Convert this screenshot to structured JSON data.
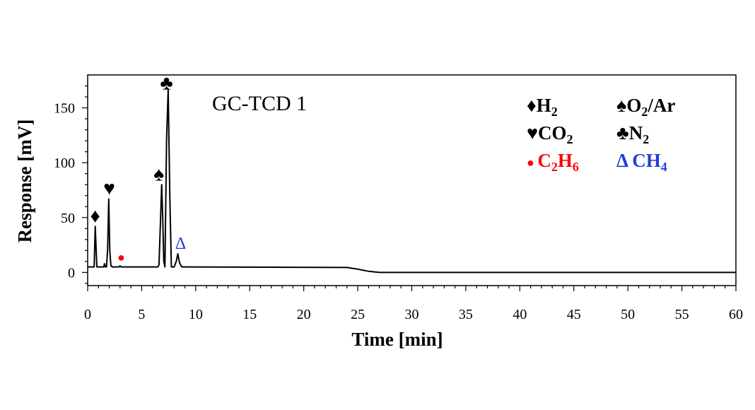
{
  "chart_data": {
    "type": "line",
    "title": "GC-TCD 1",
    "xlabel": "Time [min]",
    "ylabel": "Response [mV]",
    "xlim": [
      0,
      60
    ],
    "ylim": [
      -12,
      180
    ],
    "x_ticks": [
      0,
      5,
      10,
      15,
      20,
      25,
      30,
      35,
      40,
      45,
      50,
      55,
      60
    ],
    "y_ticks": [
      0,
      50,
      100,
      150
    ],
    "grid": false,
    "legend_position": "top-right",
    "series": [
      {
        "color": "#000000",
        "x": [
          0,
          0.4,
          0.6,
          0.7,
          0.85,
          1.0,
          1.5,
          1.55,
          1.65,
          1.75,
          1.85,
          1.95,
          2.05,
          2.15,
          2.3,
          2.4,
          2.9,
          3.0,
          3.1,
          3.3,
          6.5,
          6.6,
          6.75,
          6.85,
          6.95,
          7.05,
          7.15,
          7.3,
          7.45,
          7.6,
          7.75,
          8.0,
          8.2,
          8.35,
          8.5,
          8.7,
          9.0,
          24.0,
          25.0,
          26.0,
          27.0,
          28.0,
          60.0
        ],
        "y": [
          5,
          5,
          5,
          42,
          5,
          5,
          5,
          8,
          5,
          5,
          22,
          67,
          20,
          6,
          5,
          5,
          5,
          6,
          5,
          5,
          5,
          7,
          50,
          80,
          50,
          10,
          5,
          120,
          167,
          70,
          5,
          5,
          10,
          17,
          9,
          5,
          5,
          4.5,
          3,
          1,
          0,
          0,
          0
        ]
      }
    ],
    "annotations": [
      {
        "symbol": "♦",
        "x": 0.7,
        "y": 52,
        "color": "#000000"
      },
      {
        "symbol": "♥",
        "x": 2.0,
        "y": 77,
        "color": "#000000"
      },
      {
        "symbol": "●",
        "x": 3.1,
        "y": 14,
        "color": "#ff0000"
      },
      {
        "symbol": "♠",
        "x": 6.6,
        "y": 90,
        "color": "#000000"
      },
      {
        "symbol": "♣",
        "x": 7.3,
        "y": 173,
        "color": "#000000"
      },
      {
        "symbol": "Δ",
        "x": 8.6,
        "y": 27,
        "color": "#1f3fd6"
      }
    ],
    "legend": [
      {
        "symbol": "♦",
        "name": "H",
        "sub": "2",
        "rest": "",
        "color": "#000000"
      },
      {
        "symbol": "♠",
        "name": "O",
        "sub": "2",
        "rest": "/Ar",
        "color": "#000000"
      },
      {
        "symbol": "♥",
        "name": "CO",
        "sub": "2",
        "rest": "",
        "color": "#000000"
      },
      {
        "symbol": "♣",
        "name": "N",
        "sub": "2",
        "rest": "",
        "color": "#000000"
      },
      {
        "symbol": "●",
        "name": "C",
        "sub": "2",
        "rest": "H",
        "sub2": "6",
        "color": "#ff0000"
      },
      {
        "symbol": "Δ",
        "name": "CH",
        "sub": "4",
        "rest": "",
        "color": "#1f3fd6"
      }
    ]
  }
}
